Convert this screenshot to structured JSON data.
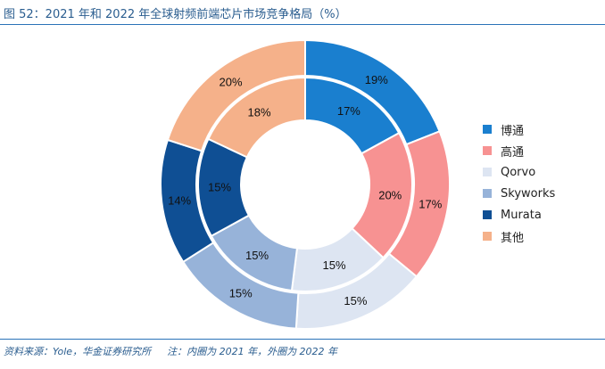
{
  "title": "图 52：2021 年和 2022 年全球射频前端芯片市场竞争格局（%）",
  "source": "资料来源：Yole，华金证券研究所",
  "note": "注：内圈为 2021 年，外圈为 2022 年",
  "chart_data": {
    "type": "pie",
    "categories": [
      "博通",
      "高通",
      "Qorvo",
      "Skyworks",
      "Murata",
      "其他"
    ],
    "colors": [
      "#1a7fcf",
      "#f79292",
      "#dde5f2",
      "#97b3d9",
      "#0f4f94",
      "#f5b18a"
    ],
    "series": [
      {
        "name": "2021",
        "ring": "inner",
        "values": [
          17,
          20,
          15,
          15,
          15,
          18
        ],
        "labels": [
          "17%",
          "20%",
          "15%",
          "15%",
          "15%",
          "18%"
        ]
      },
      {
        "name": "2022",
        "ring": "outer",
        "values": [
          19,
          17,
          15,
          15,
          14,
          20
        ],
        "labels": [
          "19%",
          "17%",
          "15%",
          "15%",
          "14%",
          "20%"
        ]
      }
    ],
    "legend_position": "right"
  }
}
